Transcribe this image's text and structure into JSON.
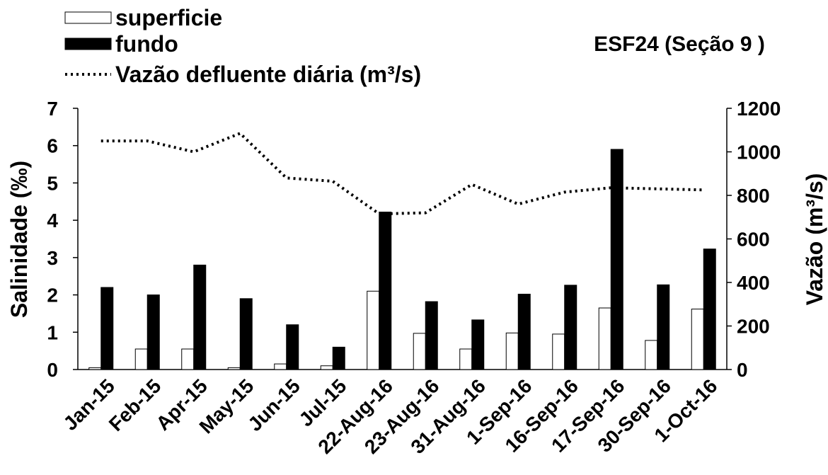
{
  "chart_data": {
    "type": "bar",
    "title": "ESF24 (Seção 9 )",
    "ylabel": "Salinidade (‰)",
    "y2label": "Vazão (m³/s)",
    "categories": [
      "Jan-15",
      "Feb-15",
      "Apr-15",
      "May-15",
      "Jun-15",
      "Jul-15",
      "22-Aug-16",
      "23-Aug-16",
      "31-Aug-16",
      "1-Sep-16",
      "16-Sep-16",
      "17-Sep-16",
      "30-Sep-16",
      "1-Oct-16"
    ],
    "series": [
      {
        "name": "superficie",
        "color": "#ffffff",
        "values": [
          0.05,
          0.55,
          0.55,
          0.05,
          0.15,
          0.1,
          2.1,
          0.97,
          0.55,
          0.98,
          0.95,
          1.65,
          0.78,
          1.62
        ]
      },
      {
        "name": "fundo",
        "color": "#000000",
        "values": [
          2.2,
          2.0,
          2.8,
          1.9,
          1.2,
          0.6,
          4.22,
          1.82,
          1.33,
          2.02,
          2.26,
          5.9,
          2.27,
          3.23
        ]
      },
      {
        "name": "Vazão defluente diária (m³/s)",
        "color": "#000000",
        "type": "line",
        "axis": "y2",
        "values": [
          1050,
          1050,
          1000,
          1085,
          880,
          865,
          715,
          720,
          850,
          760,
          815,
          835,
          830,
          825
        ]
      }
    ],
    "ylim": [
      0,
      7
    ],
    "yticks": [
      0,
      1,
      2,
      3,
      4,
      5,
      6,
      7
    ],
    "y2lim": [
      0,
      1200
    ],
    "y2ticks": [
      0,
      200,
      400,
      600,
      800,
      1000,
      1200
    ]
  }
}
